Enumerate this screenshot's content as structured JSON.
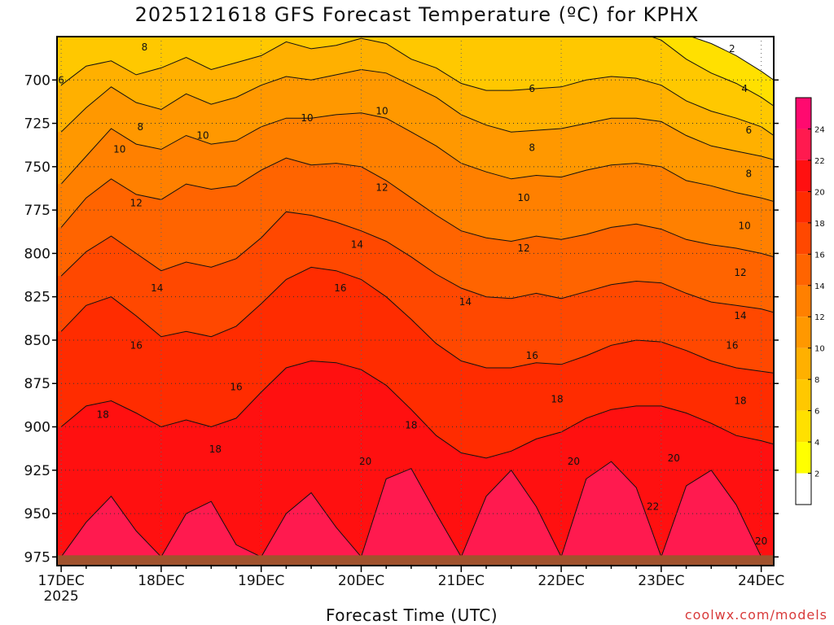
{
  "title": "2025121618 GFS Forecast Temperature (ºC) for KPHX",
  "xlabel": "Forecast Time (UTC)",
  "credit": "coolwx.com/models",
  "colors": {
    "background": "#ffffff",
    "ground": "#a0522d",
    "bands": [
      "#ffffff",
      "#ffff00",
      "#ffe000",
      "#ffc800",
      "#ffb000",
      "#ff9800",
      "#ff8000",
      "#ff6400",
      "#ff4800",
      "#ff2c00",
      "#ff1010",
      "#ff1a4f",
      "#ff0a6f",
      "#ff0a8a"
    ]
  },
  "chart_data": {
    "type": "heatmap",
    "title": "2025121618 GFS Forecast Temperature (ºC) for KPHX",
    "xlabel": "Forecast Time (UTC)",
    "ylabel": "",
    "x_ticks": [
      {
        "t": 0,
        "label": "17DEC",
        "sublabel": "2025"
      },
      {
        "t": 24,
        "label": "18DEC",
        "sublabel": ""
      },
      {
        "t": 48,
        "label": "19DEC",
        "sublabel": ""
      },
      {
        "t": 72,
        "label": "20DEC",
        "sublabel": ""
      },
      {
        "t": 96,
        "label": "21DEC",
        "sublabel": ""
      },
      {
        "t": 120,
        "label": "22DEC",
        "sublabel": ""
      },
      {
        "t": 144,
        "label": "23DEC",
        "sublabel": ""
      },
      {
        "t": 168,
        "label": "24DEC",
        "sublabel": ""
      }
    ],
    "xlim": [
      -1,
      171
    ],
    "ylim": [
      980,
      675
    ],
    "y_ticks": [
      700,
      725,
      750,
      775,
      800,
      825,
      850,
      875,
      900,
      925,
      950,
      975
    ],
    "colorbar": {
      "levels": [
        2,
        4,
        6,
        8,
        10,
        12,
        14,
        16,
        18,
        20,
        22,
        24
      ]
    },
    "surface_pressure": 975,
    "contour_levels": [
      2,
      4,
      6,
      8,
      10,
      12,
      14,
      16,
      18,
      20,
      22
    ],
    "times": [
      0,
      6,
      12,
      18,
      24,
      30,
      36,
      42,
      48,
      54,
      60,
      66,
      72,
      78,
      84,
      90,
      96,
      102,
      108,
      114,
      120,
      126,
      132,
      138,
      144,
      150,
      156,
      162,
      168,
      171
    ],
    "contours": [
      {
        "level": 2,
        "p": [
          672,
          672,
          672,
          672,
          672,
          672,
          672,
          672,
          672,
          672,
          672,
          672,
          672,
          672,
          672,
          672,
          672,
          672,
          672,
          672,
          672,
          672,
          672,
          672,
          672,
          674,
          679,
          686,
          695,
          700
        ]
      },
      {
        "level": 4,
        "p": [
          672,
          672,
          672,
          672,
          672,
          672,
          672,
          672,
          672,
          672,
          672,
          672,
          672,
          672,
          672,
          672,
          672,
          672,
          672,
          672,
          672,
          672,
          672,
          672,
          677,
          688,
          696,
          702,
          710,
          715
        ]
      },
      {
        "level": 6,
        "p": [
          703,
          692,
          689,
          697,
          693,
          687,
          694,
          690,
          686,
          678,
          682,
          680,
          676,
          679,
          688,
          693,
          702,
          706,
          706,
          705,
          704,
          700,
          698,
          699,
          703,
          712,
          718,
          722,
          727,
          732
        ]
      },
      {
        "level": 8,
        "p": [
          730,
          716,
          704,
          713,
          717,
          708,
          714,
          710,
          703,
          698,
          700,
          697,
          694,
          696,
          703,
          710,
          720,
          726,
          730,
          729,
          728,
          725,
          722,
          722,
          724,
          732,
          738,
          741,
          744,
          746
        ]
      },
      {
        "level": 10,
        "p": [
          760,
          744,
          728,
          737,
          740,
          732,
          737,
          735,
          727,
          722,
          722,
          720,
          719,
          722,
          730,
          738,
          748,
          753,
          757,
          755,
          756,
          752,
          749,
          748,
          750,
          758,
          761,
          765,
          768,
          770
        ]
      },
      {
        "level": 12,
        "p": [
          785,
          768,
          757,
          766,
          769,
          760,
          763,
          761,
          752,
          745,
          749,
          748,
          750,
          758,
          768,
          778,
          787,
          791,
          793,
          790,
          792,
          789,
          785,
          783,
          786,
          792,
          795,
          797,
          800,
          802
        ]
      },
      {
        "level": 14,
        "p": [
          813,
          799,
          790,
          800,
          810,
          805,
          808,
          803,
          791,
          776,
          778,
          782,
          787,
          793,
          802,
          812,
          820,
          825,
          826,
          823,
          826,
          822,
          818,
          816,
          817,
          823,
          828,
          830,
          832,
          834
        ]
      },
      {
        "level": 16,
        "p": [
          845,
          830,
          825,
          836,
          848,
          845,
          848,
          842,
          829,
          815,
          808,
          810,
          815,
          825,
          838,
          852,
          862,
          866,
          866,
          863,
          864,
          859,
          853,
          850,
          851,
          856,
          862,
          866,
          868,
          869
        ]
      },
      {
        "level": 18,
        "p": [
          900,
          888,
          885,
          892,
          900,
          896,
          900,
          895,
          880,
          866,
          862,
          863,
          867,
          876,
          890,
          905,
          915,
          918,
          914,
          907,
          903,
          895,
          890,
          888,
          888,
          892,
          898,
          905,
          908,
          910
        ]
      },
      {
        "level": 20,
        "p": [
          975,
          955,
          940,
          960,
          975,
          950,
          943,
          968,
          975,
          950,
          938,
          958,
          975,
          930,
          924,
          950,
          975,
          940,
          925,
          946,
          975,
          930,
          920,
          935,
          975,
          934,
          925,
          945,
          975,
          975
        ]
      }
    ],
    "contour_labels": [
      {
        "t": 0,
        "p": 700,
        "value": 6
      },
      {
        "t": 20,
        "p": 681,
        "value": 8
      },
      {
        "t": 59,
        "p": 722,
        "value": 10
      },
      {
        "t": 77,
        "p": 718,
        "value": 10
      },
      {
        "t": 113,
        "p": 705,
        "value": 6
      },
      {
        "t": 161,
        "p": 682,
        "value": 2
      },
      {
        "t": 164,
        "p": 705,
        "value": 4
      },
      {
        "t": 165,
        "p": 729,
        "value": 6
      },
      {
        "t": 19,
        "p": 727,
        "value": 8
      },
      {
        "t": 34,
        "p": 732,
        "value": 10
      },
      {
        "t": 14,
        "p": 740,
        "value": 10
      },
      {
        "t": 77,
        "p": 762,
        "value": 12
      },
      {
        "t": 113,
        "p": 739,
        "value": 8
      },
      {
        "t": 165,
        "p": 754,
        "value": 8
      },
      {
        "t": 18,
        "p": 771,
        "value": 12
      },
      {
        "t": 111,
        "p": 768,
        "value": 10
      },
      {
        "t": 164,
        "p": 784,
        "value": 10
      },
      {
        "t": 71,
        "p": 795,
        "value": 14
      },
      {
        "t": 111,
        "p": 797,
        "value": 12
      },
      {
        "t": 163,
        "p": 811,
        "value": 12
      },
      {
        "t": 23,
        "p": 820,
        "value": 14
      },
      {
        "t": 67,
        "p": 820,
        "value": 16
      },
      {
        "t": 97,
        "p": 828,
        "value": 14
      },
      {
        "t": 163,
        "p": 836,
        "value": 14
      },
      {
        "t": 18,
        "p": 853,
        "value": 16
      },
      {
        "t": 42,
        "p": 877,
        "value": 16
      },
      {
        "t": 113,
        "p": 859,
        "value": 16
      },
      {
        "t": 161,
        "p": 853,
        "value": 16
      },
      {
        "t": 10,
        "p": 893,
        "value": 18
      },
      {
        "t": 84,
        "p": 899,
        "value": 18
      },
      {
        "t": 37,
        "p": 913,
        "value": 18
      },
      {
        "t": 119,
        "p": 884,
        "value": 18
      },
      {
        "t": 163,
        "p": 885,
        "value": 18
      },
      {
        "t": 73,
        "p": 920,
        "value": 20
      },
      {
        "t": 123,
        "p": 920,
        "value": 20
      },
      {
        "t": 147,
        "p": 918,
        "value": 20
      },
      {
        "t": 142,
        "p": 946,
        "value": 22
      },
      {
        "t": 168,
        "p": 966,
        "value": 20
      }
    ]
  }
}
